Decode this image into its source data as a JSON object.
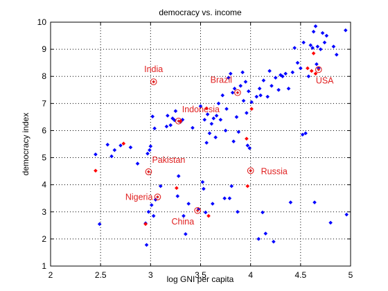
{
  "chart_data": {
    "type": "scatter",
    "title": "democracy vs. income",
    "xlabel": "log GNI per capita",
    "ylabel": "democracy index",
    "xlim": [
      2,
      5
    ],
    "ylim": [
      1,
      10
    ],
    "xticks": [
      2,
      2.5,
      3,
      3.5,
      4,
      4.5,
      5
    ],
    "xtick_labels": [
      "2",
      "2.5",
      "3",
      "3.5",
      "4",
      "4.5",
      "5"
    ],
    "yticks": [
      1,
      2,
      3,
      4,
      5,
      6,
      7,
      8,
      9,
      10
    ],
    "ytick_labels": [
      "1",
      "2",
      "3",
      "4",
      "5",
      "6",
      "7",
      "8",
      "9",
      "10"
    ],
    "grid": true,
    "grid_style": "dotted",
    "colors": {
      "blue": "#0000ff",
      "red": "#ff0000",
      "label": "#e02020",
      "grid": "#000000"
    },
    "series": [
      {
        "color": "blue",
        "marker": "diamond",
        "points": [
          [
            2.45,
            5.12
          ],
          [
            2.49,
            2.55
          ],
          [
            2.57,
            5.48
          ],
          [
            2.61,
            5.05
          ],
          [
            2.64,
            5.28
          ],
          [
            2.7,
            5.45
          ],
          [
            2.8,
            5.38
          ],
          [
            2.87,
            4.78
          ],
          [
            2.95,
            2.58
          ],
          [
            2.96,
            1.78
          ],
          [
            2.97,
            5.15
          ],
          [
            2.98,
            3.0
          ],
          [
            2.99,
            5.28
          ],
          [
            3.0,
            5.42
          ],
          [
            3.01,
            3.25
          ],
          [
            3.02,
            6.52
          ],
          [
            3.03,
            2.85
          ],
          [
            3.04,
            6.08
          ],
          [
            3.05,
            3.45
          ],
          [
            3.1,
            3.95
          ],
          [
            3.16,
            6.15
          ],
          [
            3.17,
            6.55
          ],
          [
            3.2,
            6.2
          ],
          [
            3.22,
            6.45
          ],
          [
            3.24,
            6.38
          ],
          [
            3.25,
            6.72
          ],
          [
            3.27,
            3.58
          ],
          [
            3.28,
            4.32
          ],
          [
            3.3,
            6.32
          ],
          [
            3.32,
            6.4
          ],
          [
            3.33,
            2.85
          ],
          [
            3.35,
            2.18
          ],
          [
            3.38,
            3.3
          ],
          [
            3.42,
            6.1
          ],
          [
            3.48,
            3.1
          ],
          [
            3.5,
            6.9
          ],
          [
            3.52,
            4.1
          ],
          [
            3.53,
            3.85
          ],
          [
            3.54,
            6.4
          ],
          [
            3.55,
            2.98
          ],
          [
            3.56,
            5.55
          ],
          [
            3.57,
            6.6
          ],
          [
            3.59,
            5.9
          ],
          [
            3.61,
            6.25
          ],
          [
            3.62,
            3.3
          ],
          [
            3.63,
            6.45
          ],
          [
            3.65,
            5.75
          ],
          [
            3.66,
            6.55
          ],
          [
            3.68,
            7.0
          ],
          [
            3.7,
            6.4
          ],
          [
            3.72,
            7.3
          ],
          [
            3.74,
            3.5
          ],
          [
            3.75,
            6.0
          ],
          [
            3.76,
            6.8
          ],
          [
            3.78,
            7.95
          ],
          [
            3.79,
            3.5
          ],
          [
            3.8,
            8.1
          ],
          [
            3.81,
            3.95
          ],
          [
            3.82,
            7.4
          ],
          [
            3.83,
            5.6
          ],
          [
            3.84,
            7.55
          ],
          [
            3.86,
            6.5
          ],
          [
            3.87,
            3.0
          ],
          [
            3.88,
            5.95
          ],
          [
            3.9,
            7.65
          ],
          [
            3.92,
            8.15
          ],
          [
            3.93,
            7.1
          ],
          [
            3.95,
            7.8
          ],
          [
            3.96,
            6.65
          ],
          [
            3.97,
            5.45
          ],
          [
            3.98,
            7.45
          ],
          [
            3.99,
            5.35
          ],
          [
            4.01,
            7.05
          ],
          [
            4.06,
            7.25
          ],
          [
            4.08,
            2.0
          ],
          [
            4.09,
            7.55
          ],
          [
            4.1,
            7.3
          ],
          [
            4.12,
            2.98
          ],
          [
            4.13,
            7.85
          ],
          [
            4.15,
            2.2
          ],
          [
            4.17,
            7.25
          ],
          [
            4.19,
            8.2
          ],
          [
            4.21,
            7.65
          ],
          [
            4.23,
            1.9
          ],
          [
            4.25,
            7.95
          ],
          [
            4.28,
            7.5
          ],
          [
            4.3,
            8.05
          ],
          [
            4.32,
            8.0
          ],
          [
            4.35,
            8.1
          ],
          [
            4.38,
            7.55
          ],
          [
            4.4,
            3.35
          ],
          [
            4.42,
            8.15
          ],
          [
            4.44,
            9.05
          ],
          [
            4.47,
            8.5
          ],
          [
            4.5,
            8.3
          ],
          [
            4.52,
            5.85
          ],
          [
            4.53,
            9.25
          ],
          [
            4.55,
            5.9
          ],
          [
            4.58,
            8.0
          ],
          [
            4.6,
            9.15
          ],
          [
            4.62,
            9.05
          ],
          [
            4.63,
            9.65
          ],
          [
            4.64,
            3.35
          ],
          [
            4.65,
            9.85
          ],
          [
            4.66,
            8.45
          ],
          [
            4.67,
            9.1
          ],
          [
            4.68,
            8.3
          ],
          [
            4.7,
            9.0
          ],
          [
            4.72,
            9.6
          ],
          [
            4.74,
            9.25
          ],
          [
            4.76,
            9.5
          ],
          [
            4.8,
            2.6
          ],
          [
            4.83,
            9.1
          ],
          [
            4.86,
            8.8
          ],
          [
            4.95,
            9.7
          ],
          [
            4.96,
            2.9
          ]
        ]
      },
      {
        "color": "red",
        "marker": "diamond",
        "points": [
          [
            2.45,
            4.52
          ],
          [
            2.73,
            5.52
          ],
          [
            2.95,
            2.55
          ],
          [
            3.26,
            3.88
          ],
          [
            3.3,
            6.35
          ],
          [
            3.56,
            6.82
          ],
          [
            3.58,
            2.85
          ],
          [
            3.96,
            5.7
          ],
          [
            3.97,
            3.95
          ],
          [
            4.01,
            6.8
          ],
          [
            4.57,
            8.3
          ],
          [
            4.61,
            8.2
          ],
          [
            4.63,
            8.85
          ],
          [
            4.65,
            8.1
          ]
        ]
      }
    ],
    "highlighted": [
      {
        "label": "India",
        "x": 3.03,
        "y": 7.8,
        "label_anchor": "above"
      },
      {
        "label": "Brazil",
        "x": 3.87,
        "y": 7.4,
        "label_anchor": "upper-left"
      },
      {
        "label": "Indonesia",
        "x": 3.28,
        "y": 6.35,
        "label_anchor": "upper-right"
      },
      {
        "label": "USA",
        "x": 4.68,
        "y": 8.25,
        "label_anchor": "below-right"
      },
      {
        "label": "Pakistan",
        "x": 2.98,
        "y": 4.48,
        "label_anchor": "upper-right"
      },
      {
        "label": "Russia",
        "x": 4.0,
        "y": 4.52,
        "label_anchor": "right"
      },
      {
        "label": "Nigeria",
        "x": 3.07,
        "y": 3.55,
        "label_anchor": "left"
      },
      {
        "label": "China",
        "x": 3.47,
        "y": 3.05,
        "label_anchor": "lower-left"
      }
    ]
  }
}
